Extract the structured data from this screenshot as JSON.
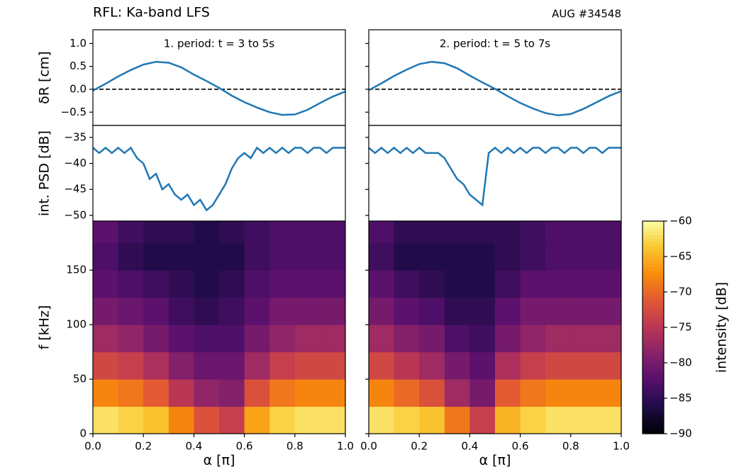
{
  "figure": {
    "title": "RFL: Ka-band LFS",
    "label": "AUG #34548"
  },
  "chart_data": [
    {
      "type": "line",
      "annotation": "1. period: t = 3 to 5s",
      "ylabel": "δR [cm]",
      "ylim": [
        -0.79,
        1.3
      ],
      "yticks": [
        {
          "value": -0.5,
          "label": "−0.5"
        },
        {
          "value": 0,
          "label": "0.0"
        },
        {
          "value": 0.5,
          "label": "0.5"
        },
        {
          "value": 1,
          "label": "1.0"
        }
      ],
      "hline": 0,
      "xlim": [
        0,
        1
      ],
      "x": [
        0,
        0.05,
        0.1,
        0.15,
        0.2,
        0.25,
        0.3,
        0.35,
        0.4,
        0.45,
        0.5,
        0.55,
        0.6,
        0.65,
        0.7,
        0.75,
        0.8,
        0.85,
        0.9,
        0.95,
        1
      ],
      "series": [
        {
          "color": "#1f77b4",
          "values": [
            -0.03,
            0.12,
            0.28,
            0.42,
            0.54,
            0.6,
            0.58,
            0.48,
            0.32,
            0.18,
            0.03,
            -0.14,
            -0.28,
            -0.4,
            -0.5,
            -0.56,
            -0.55,
            -0.45,
            -0.3,
            -0.16,
            -0.05
          ]
        }
      ]
    },
    {
      "type": "line",
      "annotation": "2. period: t = 5 to 7s",
      "ylim": [
        -0.79,
        1.3
      ],
      "yticks": [
        -0.5,
        0,
        0.5,
        1
      ],
      "show_ytick_labels": false,
      "hline": 0,
      "xlim": [
        0,
        1
      ],
      "x": [
        0,
        0.05,
        0.1,
        0.15,
        0.2,
        0.25,
        0.3,
        0.35,
        0.4,
        0.45,
        0.5,
        0.55,
        0.6,
        0.65,
        0.7,
        0.75,
        0.8,
        0.85,
        0.9,
        0.95,
        1
      ],
      "series": [
        {
          "color": "#1f77b4",
          "values": [
            -0.02,
            0.13,
            0.29,
            0.43,
            0.55,
            0.6,
            0.57,
            0.46,
            0.3,
            0.15,
            0.01,
            -0.15,
            -0.3,
            -0.42,
            -0.52,
            -0.57,
            -0.54,
            -0.43,
            -0.29,
            -0.15,
            -0.04
          ]
        }
      ]
    },
    {
      "type": "line",
      "ylabel": "int. PSD [dB]",
      "ylim": [
        -51.1,
        -32.7
      ],
      "yticks": [
        {
          "value": -50,
          "label": "−50"
        },
        {
          "value": -45,
          "label": "−45"
        },
        {
          "value": -40,
          "label": "−40"
        },
        {
          "value": -35,
          "label": "−35"
        }
      ],
      "xlim": [
        0,
        1
      ],
      "x": [
        0,
        0.025,
        0.05,
        0.075,
        0.1,
        0.125,
        0.15,
        0.175,
        0.2,
        0.225,
        0.25,
        0.275,
        0.3,
        0.325,
        0.35,
        0.375,
        0.4,
        0.425,
        0.45,
        0.475,
        0.5,
        0.525,
        0.55,
        0.575,
        0.6,
        0.625,
        0.65,
        0.675,
        0.7,
        0.725,
        0.75,
        0.775,
        0.8,
        0.825,
        0.85,
        0.875,
        0.9,
        0.925,
        0.95,
        0.975,
        1
      ],
      "series": [
        {
          "color": "#1f77b4",
          "values": [
            -37,
            -38,
            -37,
            -38,
            -37,
            -38,
            -37,
            -39,
            -40,
            -43,
            -42,
            -45,
            -44,
            -46,
            -47,
            -46,
            -48,
            -47,
            -49,
            -48,
            -46,
            -44,
            -41,
            -39,
            -38,
            -39,
            -37,
            -38,
            -37,
            -38,
            -37,
            -38,
            -37,
            -37,
            -38,
            -37,
            -37,
            -38,
            -37,
            -37,
            -37
          ]
        }
      ]
    },
    {
      "type": "line",
      "ylim": [
        -51.1,
        -32.7
      ],
      "yticks": [
        -50,
        -45,
        -40,
        -35
      ],
      "show_ytick_labels": false,
      "xlim": [
        0,
        1
      ],
      "x": [
        0,
        0.025,
        0.05,
        0.075,
        0.1,
        0.125,
        0.15,
        0.175,
        0.2,
        0.225,
        0.25,
        0.275,
        0.3,
        0.325,
        0.35,
        0.375,
        0.4,
        0.425,
        0.45,
        0.475,
        0.5,
        0.525,
        0.55,
        0.575,
        0.6,
        0.625,
        0.65,
        0.675,
        0.7,
        0.725,
        0.75,
        0.775,
        0.8,
        0.825,
        0.85,
        0.875,
        0.9,
        0.925,
        0.95,
        0.975,
        1
      ],
      "series": [
        {
          "color": "#1f77b4",
          "values": [
            -37,
            -38,
            -37,
            -38,
            -37,
            -38,
            -37,
            -38,
            -37,
            -38,
            -38,
            -38,
            -39,
            -41,
            -43,
            -44,
            -46,
            -47,
            -48,
            -38,
            -37,
            -38,
            -37,
            -38,
            -37,
            -38,
            -37,
            -37,
            -38,
            -37,
            -37,
            -38,
            -37,
            -37,
            -38,
            -37,
            -37,
            -38,
            -37,
            -37,
            -37
          ]
        }
      ]
    },
    {
      "type": "heatmap",
      "colormap": "inferno",
      "xlabel": "α [π]",
      "ylabel": "f [kHz]",
      "xlim": [
        0,
        1
      ],
      "ylim": [
        0,
        195
      ],
      "xticks": [
        {
          "value": 0,
          "label": "0.0"
        },
        {
          "value": 0.2,
          "label": "0.2"
        },
        {
          "value": 0.4,
          "label": "0.4"
        },
        {
          "value": 0.6,
          "label": "0.6"
        },
        {
          "value": 0.8,
          "label": "0.8"
        },
        {
          "value": 1,
          "label": "1.0"
        }
      ],
      "yticks": [
        0,
        50,
        100,
        150
      ],
      "x_edges": [
        0,
        0.1,
        0.2,
        0.3,
        0.4,
        0.5,
        0.6,
        0.7,
        0.8,
        0.9,
        1
      ],
      "y_edges": [
        0,
        25,
        50,
        75,
        100,
        125,
        150,
        175,
        195
      ],
      "zlim": [
        -90,
        -60
      ],
      "z": [
        [
          -62,
          -63,
          -64,
          -68,
          -72,
          -74,
          -66,
          -63,
          -62,
          -62
        ],
        [
          -68,
          -69,
          -71,
          -75,
          -78,
          -79,
          -72,
          -69,
          -68,
          -68
        ],
        [
          -73,
          -74,
          -76,
          -79,
          -81,
          -81,
          -77,
          -74,
          -73,
          -73
        ],
        [
          -77,
          -78,
          -80,
          -82,
          -83,
          -83,
          -80,
          -78,
          -77,
          -77
        ],
        [
          -80,
          -81,
          -82,
          -84,
          -85,
          -84,
          -82,
          -80,
          -80,
          -80
        ],
        [
          -82,
          -83,
          -84,
          -85,
          -86,
          -85,
          -83,
          -82,
          -82,
          -82
        ],
        [
          -83,
          -85,
          -86,
          -86,
          -86,
          -86,
          -84,
          -83,
          -83,
          -83
        ],
        [
          -82,
          -84,
          -85,
          -85,
          -86,
          -85,
          -84,
          -83,
          -83,
          -83
        ]
      ]
    },
    {
      "type": "heatmap",
      "colormap": "inferno",
      "xlabel": "α [π]",
      "xlim": [
        0,
        1
      ],
      "ylim": [
        0,
        195
      ],
      "xticks": [
        {
          "value": 0,
          "label": "0.0"
        },
        {
          "value": 0.2,
          "label": "0.2"
        },
        {
          "value": 0.4,
          "label": "0.4"
        },
        {
          "value": 0.6,
          "label": "0.6"
        },
        {
          "value": 0.8,
          "label": "0.8"
        },
        {
          "value": 1,
          "label": "1.0"
        }
      ],
      "yticks": [
        0,
        50,
        100,
        150
      ],
      "show_ytick_labels": false,
      "x_edges": [
        0,
        0.1,
        0.2,
        0.3,
        0.4,
        0.5,
        0.6,
        0.7,
        0.8,
        0.9,
        1
      ],
      "y_edges": [
        0,
        25,
        50,
        75,
        100,
        125,
        150,
        175,
        195
      ],
      "zlim": [
        -90,
        -60
      ],
      "z": [
        [
          -62,
          -63,
          -64,
          -69,
          -74,
          -65,
          -63,
          -62,
          -62,
          -62
        ],
        [
          -68,
          -70,
          -72,
          -77,
          -80,
          -71,
          -69,
          -68,
          -68,
          -68
        ],
        [
          -73,
          -75,
          -77,
          -80,
          -82,
          -76,
          -74,
          -73,
          -73,
          -73
        ],
        [
          -77,
          -79,
          -80,
          -83,
          -84,
          -80,
          -78,
          -77,
          -77,
          -77
        ],
        [
          -80,
          -82,
          -83,
          -85,
          -85,
          -82,
          -80,
          -80,
          -80,
          -80
        ],
        [
          -82,
          -84,
          -85,
          -86,
          -86,
          -84,
          -82,
          -82,
          -82,
          -82
        ],
        [
          -84,
          -86,
          -86,
          -86,
          -86,
          -85,
          -84,
          -83,
          -83,
          -83
        ],
        [
          -83,
          -85,
          -85,
          -85,
          -85,
          -85,
          -84,
          -83,
          -83,
          -83
        ]
      ],
      "colorbar": {
        "label": "intensity [dB]",
        "lim": [
          -90,
          -60
        ],
        "ticks": [
          {
            "value": -90,
            "label": "−90"
          },
          {
            "value": -85,
            "label": "−85"
          },
          {
            "value": -80,
            "label": "−80"
          },
          {
            "value": -75,
            "label": "−75"
          },
          {
            "value": -70,
            "label": "−70"
          },
          {
            "value": -65,
            "label": "−65"
          },
          {
            "value": -60,
            "label": "−60"
          }
        ]
      }
    }
  ]
}
